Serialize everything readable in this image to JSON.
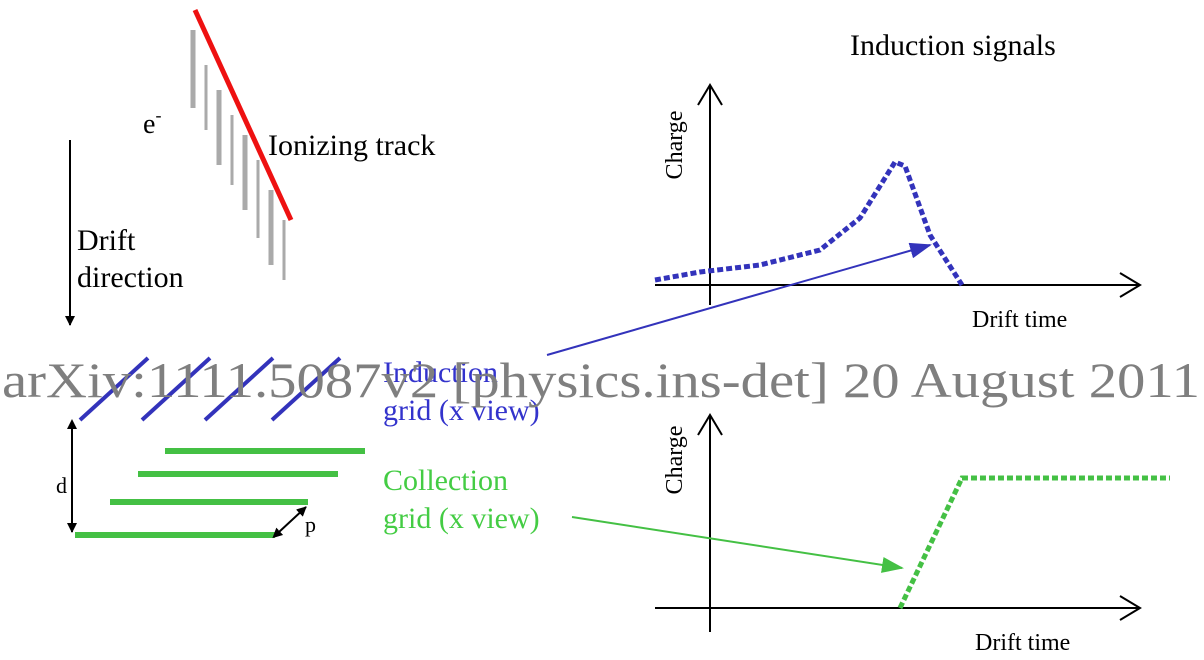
{
  "left": {
    "electron": {
      "base": "e",
      "sup": "-"
    },
    "track_label": "Ionizing track",
    "drift_label": [
      "Drift",
      "direction"
    ],
    "induction_label": [
      "Induction",
      "grid (x view)"
    ],
    "collection_label": [
      "Collection",
      "grid (x view)"
    ],
    "spacing_label": "d",
    "pitch_label": "p"
  },
  "watermark": "arXiv:1111.5087v2 [physics.ins-det] 20 August 2011",
  "signals": {
    "title": "Induction signals",
    "top": {
      "y_label": "Charge",
      "x_label": "Drift time"
    },
    "bottom": {
      "y_label": "Charge",
      "x_label": "Drift time"
    }
  }
}
